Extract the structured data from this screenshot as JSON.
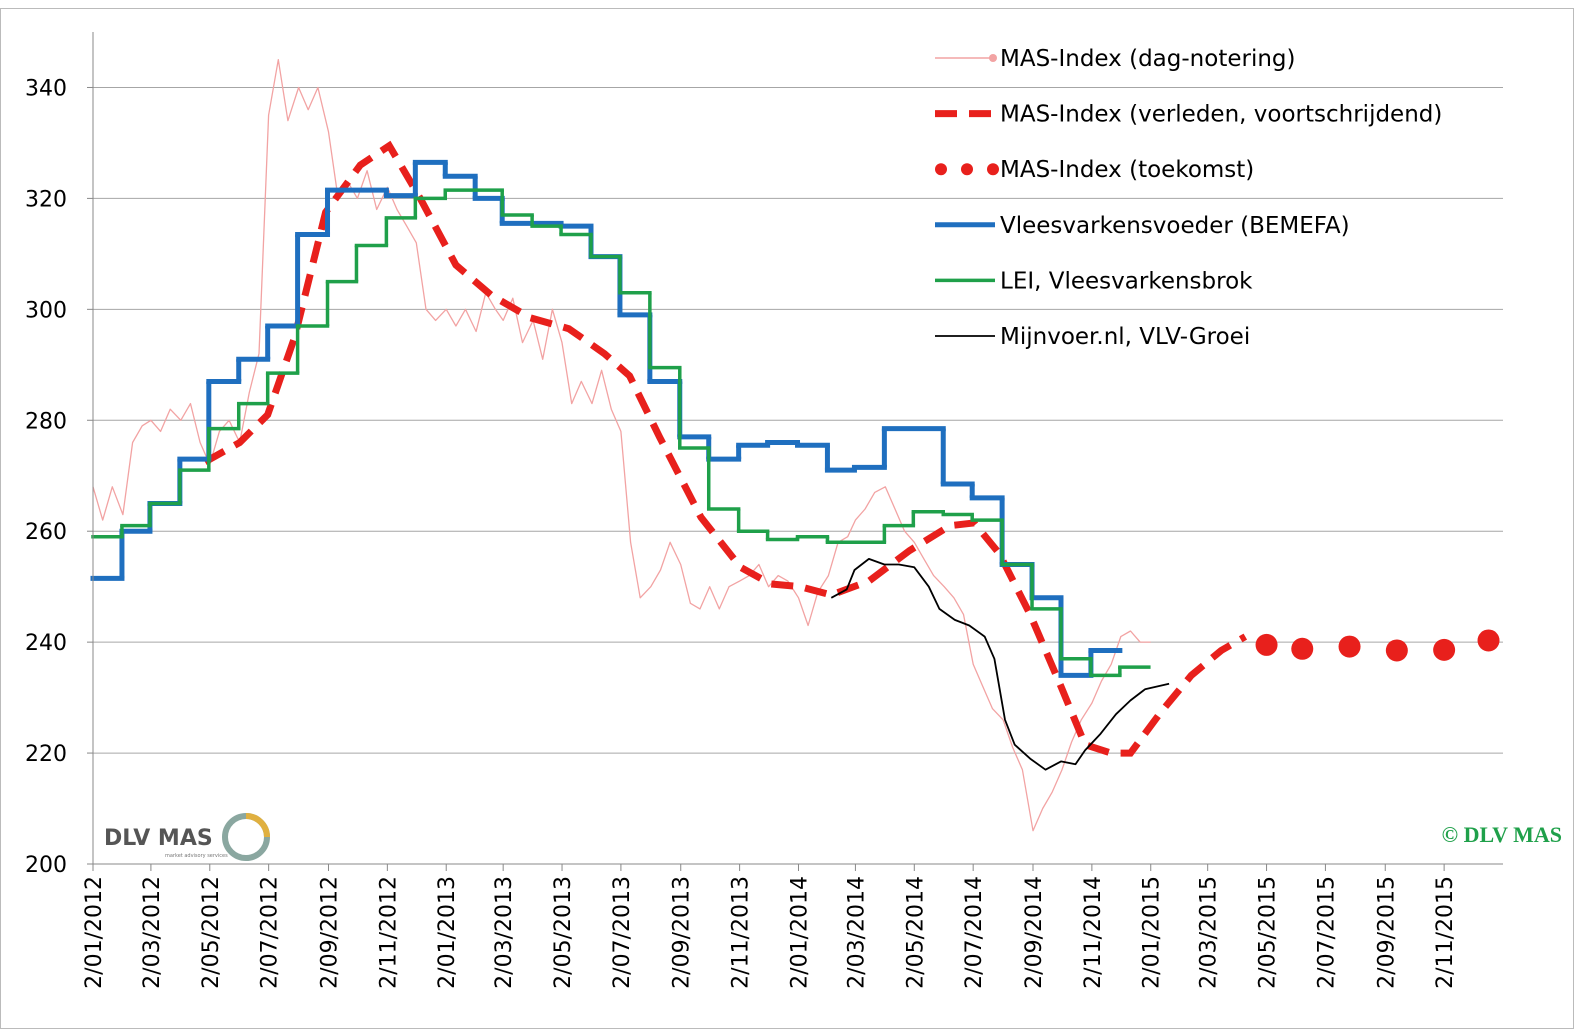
{
  "chart_data": {
    "type": "line",
    "xlim": [
      "2012-01-02",
      "2016-01-02"
    ],
    "xticks": [
      {
        "value": "2012-01-02",
        "label": "2/01/2012"
      },
      {
        "value": "2012-03-02",
        "label": "2/03/2012"
      },
      {
        "value": "2012-05-02",
        "label": "2/05/2012"
      },
      {
        "value": "2012-07-02",
        "label": "2/07/2012"
      },
      {
        "value": "2012-09-02",
        "label": "2/09/2012"
      },
      {
        "value": "2012-11-02",
        "label": "2/11/2012"
      },
      {
        "value": "2013-01-02",
        "label": "2/01/2013"
      },
      {
        "value": "2013-03-02",
        "label": "2/03/2013"
      },
      {
        "value": "2013-05-02",
        "label": "2/05/2013"
      },
      {
        "value": "2013-07-02",
        "label": "2/07/2013"
      },
      {
        "value": "2013-09-02",
        "label": "2/09/2013"
      },
      {
        "value": "2013-11-02",
        "label": "2/11/2013"
      },
      {
        "value": "2014-01-02",
        "label": "2/01/2014"
      },
      {
        "value": "2014-03-02",
        "label": "2/03/2014"
      },
      {
        "value": "2014-05-02",
        "label": "2/05/2014"
      },
      {
        "value": "2014-07-02",
        "label": "2/07/2014"
      },
      {
        "value": "2014-09-02",
        "label": "2/09/2014"
      },
      {
        "value": "2014-11-02",
        "label": "2/11/2014"
      },
      {
        "value": "2015-01-02",
        "label": "2/01/2015"
      },
      {
        "value": "2015-03-02",
        "label": "2/03/2015"
      },
      {
        "value": "2015-05-02",
        "label": "2/05/2015"
      },
      {
        "value": "2015-07-02",
        "label": "2/07/2015"
      },
      {
        "value": "2015-09-02",
        "label": "2/09/2015"
      },
      {
        "value": "2015-11-02",
        "label": "2/11/2015"
      }
    ],
    "ylim": [
      200,
      350
    ],
    "yticks": [
      200,
      220,
      240,
      260,
      280,
      300,
      320,
      340
    ],
    "grid": true,
    "legend": "upper right",
    "annotation": "© DLV MAS",
    "logo": {
      "text": "DLV MAS",
      "subtext": "market advisory services"
    },
    "series": [
      {
        "name": "MAS-Index (dag-notering)",
        "color": "#f2a3a3",
        "style": "line",
        "x": [
          "2012-01-02",
          "2012-01-12",
          "2012-01-22",
          "2012-02-02",
          "2012-02-12",
          "2012-02-22",
          "2012-03-02",
          "2012-03-12",
          "2012-03-22",
          "2012-04-02",
          "2012-04-12",
          "2012-04-22",
          "2012-05-02",
          "2012-05-12",
          "2012-05-22",
          "2012-06-02",
          "2012-06-12",
          "2012-06-22",
          "2012-07-02",
          "2012-07-12",
          "2012-07-22",
          "2012-08-02",
          "2012-08-12",
          "2012-08-22",
          "2012-09-02",
          "2012-09-12",
          "2012-09-22",
          "2012-10-02",
          "2012-10-12",
          "2012-10-22",
          "2012-11-02",
          "2012-11-12",
          "2012-11-22",
          "2012-12-02",
          "2012-12-12",
          "2012-12-22",
          "2013-01-02",
          "2013-01-12",
          "2013-01-22",
          "2013-02-02",
          "2013-02-12",
          "2013-02-22",
          "2013-03-02",
          "2013-03-12",
          "2013-03-22",
          "2013-04-02",
          "2013-04-12",
          "2013-04-22",
          "2013-05-02",
          "2013-05-12",
          "2013-05-22",
          "2013-06-02",
          "2013-06-12",
          "2013-06-22",
          "2013-07-02",
          "2013-07-12",
          "2013-07-22",
          "2013-08-02",
          "2013-08-12",
          "2013-08-22",
          "2013-09-02",
          "2013-09-12",
          "2013-09-22",
          "2013-10-02",
          "2013-10-12",
          "2013-10-22",
          "2013-11-02",
          "2013-11-12",
          "2013-11-22",
          "2013-12-02",
          "2013-12-12",
          "2013-12-22",
          "2014-01-02",
          "2014-01-12",
          "2014-01-22",
          "2014-02-02",
          "2014-02-12",
          "2014-02-22",
          "2014-03-02",
          "2014-03-12",
          "2014-03-22",
          "2014-04-02",
          "2014-04-12",
          "2014-04-22",
          "2014-05-02",
          "2014-05-12",
          "2014-05-22",
          "2014-06-02",
          "2014-06-12",
          "2014-06-22",
          "2014-07-02",
          "2014-07-12",
          "2014-07-22",
          "2014-08-02",
          "2014-08-12",
          "2014-08-22",
          "2014-09-02",
          "2014-09-12",
          "2014-09-22",
          "2014-10-02",
          "2014-10-12",
          "2014-10-22",
          "2014-11-02",
          "2014-11-12",
          "2014-11-22",
          "2014-12-02",
          "2014-12-12",
          "2014-12-22",
          "2015-01-02"
        ],
        "values": [
          268,
          262,
          268,
          263,
          276,
          279,
          280,
          278,
          282,
          280,
          283,
          276,
          272,
          278,
          280,
          276,
          285,
          292,
          335,
          345,
          334,
          340,
          336,
          340,
          332,
          320,
          323,
          320,
          325,
          318,
          322,
          318,
          315,
          312,
          300,
          298,
          300,
          297,
          300,
          296,
          303,
          300,
          298,
          302,
          294,
          298,
          291,
          300,
          294,
          283,
          287,
          283,
          289,
          282,
          278,
          258,
          248,
          250,
          253,
          258,
          254,
          247,
          246,
          250,
          246,
          250,
          251,
          252,
          254,
          250,
          252,
          251,
          248,
          243,
          249,
          252,
          258,
          259,
          262,
          264,
          267,
          268,
          264,
          260,
          258,
          255,
          252,
          250,
          248,
          245,
          236,
          232,
          228,
          226,
          221,
          217,
          206,
          210,
          213,
          217,
          222,
          226,
          229,
          233,
          236,
          241,
          242,
          240,
          240
        ]
      },
      {
        "name": "MAS-Index (verleden, voortschrijdend)",
        "color": "#e8201c",
        "style": "dashed",
        "x": [
          "2012-04-27",
          "2012-06-02",
          "2012-07-01",
          "2012-07-29",
          "2012-08-30",
          "2012-10-05",
          "2012-11-04",
          "2012-12-06",
          "2013-01-12",
          "2013-02-18",
          "2013-03-30",
          "2013-05-09",
          "2013-06-15",
          "2013-07-11",
          "2013-08-11",
          "2013-09-23",
          "2013-11-03",
          "2013-12-04",
          "2014-01-04",
          "2014-02-05",
          "2014-03-16",
          "2014-04-27",
          "2014-06-08",
          "2014-07-03",
          "2014-07-29",
          "2014-08-30",
          "2014-10-01",
          "2014-10-26",
          "2014-11-22",
          "2014-12-12",
          "2015-01-13",
          "2015-02-13",
          "2015-03-16",
          "2015-04-10"
        ],
        "values": [
          272.5,
          276,
          281,
          295,
          317.5,
          326,
          329.5,
          320,
          308,
          302.5,
          298.5,
          296.5,
          292,
          288,
          277,
          262.5,
          253.5,
          250.5,
          250,
          248.5,
          251,
          256.5,
          261,
          261.5,
          256,
          245,
          232,
          221.5,
          220,
          220,
          227.5,
          234,
          238.5,
          241
        ]
      },
      {
        "name": "MAS-Index (toekomst)",
        "color": "#e8201c",
        "style": "dots",
        "x": [
          "2015-05-02",
          "2015-06-08",
          "2015-07-27",
          "2015-09-14",
          "2015-11-02",
          "2015-12-18"
        ],
        "values": [
          239.5,
          238.8,
          239.2,
          238.5,
          238.6,
          240.3
        ]
      },
      {
        "name": "Vleesvarkensvoeder (BEMEFA)",
        "color": "#1f6fbf",
        "style": "step",
        "width": 5,
        "x": [
          "2012-01-02",
          "2012-02-01",
          "2012-03-01",
          "2012-04-01",
          "2012-05-01",
          "2012-06-01",
          "2012-07-01",
          "2012-08-01",
          "2012-09-01",
          "2012-11-01",
          "2012-12-01",
          "2013-01-01",
          "2013-02-01",
          "2013-03-01",
          "2013-05-01",
          "2013-06-01",
          "2013-07-01",
          "2013-08-01",
          "2013-09-01",
          "2013-10-01",
          "2013-11-01",
          "2013-12-01",
          "2014-01-01",
          "2014-02-01",
          "2014-03-01",
          "2014-04-01",
          "2014-06-01",
          "2014-07-01",
          "2014-08-01",
          "2014-09-01",
          "2014-10-01",
          "2014-11-01",
          "2014-12-01"
        ],
        "values": [
          251.5,
          260,
          265,
          273,
          287,
          291,
          297,
          313.5,
          321.5,
          320.5,
          326.5,
          324,
          320,
          315.5,
          315,
          309.5,
          299,
          287,
          277,
          273,
          275.5,
          276,
          275.5,
          271,
          271.5,
          278.5,
          268.5,
          266,
          254,
          248,
          234,
          238.5,
          238.5
        ]
      },
      {
        "name": "LEI, Vleesvarkensbrok",
        "color": "#1fa04a",
        "style": "step",
        "width": 3.5,
        "x": [
          "2012-01-02",
          "2012-02-01",
          "2012-03-01",
          "2012-04-01",
          "2012-05-01",
          "2012-06-01",
          "2012-07-01",
          "2012-08-01",
          "2012-09-01",
          "2012-10-01",
          "2012-11-01",
          "2012-12-01",
          "2013-01-01",
          "2013-03-01",
          "2013-04-01",
          "2013-05-01",
          "2013-06-01",
          "2013-07-01",
          "2013-08-01",
          "2013-09-01",
          "2013-10-01",
          "2013-11-01",
          "2013-12-01",
          "2014-01-01",
          "2014-02-01",
          "2014-04-01",
          "2014-05-01",
          "2014-06-01",
          "2014-07-01",
          "2014-08-01",
          "2014-09-01",
          "2014-10-01",
          "2014-11-01",
          "2014-12-01",
          "2014-12-31"
        ],
        "values": [
          259,
          261,
          265,
          271,
          278.5,
          283,
          288.5,
          297,
          305,
          311.5,
          316.5,
          320,
          321.5,
          317,
          315,
          313.5,
          309.5,
          303,
          289.5,
          275,
          264,
          260,
          258.5,
          259,
          258,
          261,
          263.5,
          263,
          262,
          254,
          246,
          237,
          234,
          235.5,
          235.5
        ]
      },
      {
        "name": "Mijnvoer.nl, VLV-Groei",
        "color": "#000000",
        "style": "line",
        "width": 1.8,
        "x": [
          "2014-02-05",
          "2014-02-21",
          "2014-03-01",
          "2014-03-16",
          "2014-04-01",
          "2014-04-16",
          "2014-05-02",
          "2014-05-17",
          "2014-05-28",
          "2014-06-13",
          "2014-06-28",
          "2014-07-14",
          "2014-07-24",
          "2014-08-04",
          "2014-08-14",
          "2014-08-30",
          "2014-09-15",
          "2014-10-01",
          "2014-10-16",
          "2014-10-26",
          "2014-11-11",
          "2014-11-27",
          "2014-12-12",
          "2014-12-27",
          "2015-01-21"
        ],
        "values": [
          248,
          249.5,
          253,
          255,
          254,
          254,
          253.5,
          250,
          246,
          244,
          243,
          241,
          237,
          226,
          221.5,
          219,
          217,
          218.5,
          218,
          220.5,
          223.5,
          227,
          229.5,
          231.5,
          232.5
        ]
      }
    ]
  }
}
